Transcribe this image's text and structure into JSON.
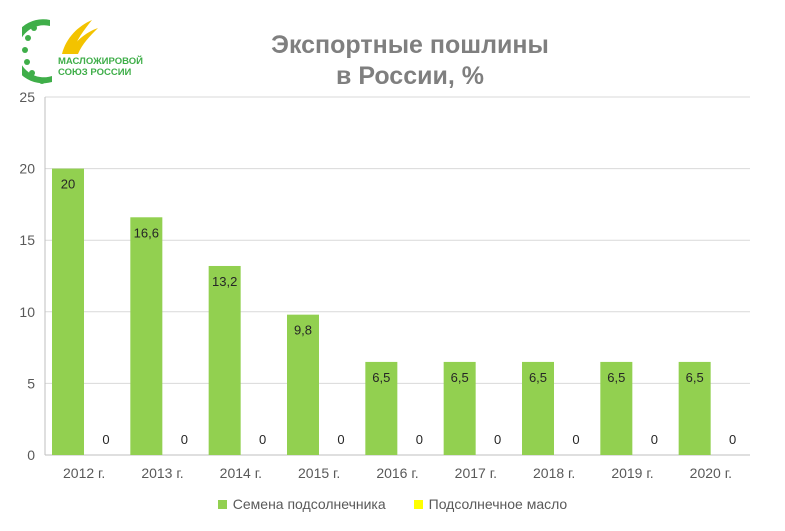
{
  "logo": {
    "line1": "МАСЛОЖИРОВОЙ",
    "line2": "СОЮЗ РОССИИ",
    "colors": {
      "green": "#3fae49",
      "yellow": "#f3c300"
    }
  },
  "chart_data": {
    "type": "bar",
    "title_lines": [
      "Экспортные пошлины",
      "в России, %"
    ],
    "categories": [
      "2012 г.",
      "2013 г.",
      "2014 г.",
      "2015 г.",
      "2016 г.",
      "2017 г.",
      "2018 г.",
      "2019 г.",
      "2020 г."
    ],
    "series": [
      {
        "name": "Семена подсолнечника",
        "color": "#92d050",
        "values": [
          20,
          16.6,
          13.2,
          9.8,
          6.5,
          6.5,
          6.5,
          6.5,
          6.5
        ],
        "labels": [
          "20",
          "16,6",
          "13,2",
          "9,8",
          "6,5",
          "6,5",
          "6,5",
          "6,5",
          "6,5"
        ]
      },
      {
        "name": "Подсолнечное  масло",
        "color": "#ffff00",
        "values": [
          0,
          0,
          0,
          0,
          0,
          0,
          0,
          0,
          0
        ],
        "labels": [
          "0",
          "0",
          "0",
          "0",
          "0",
          "0",
          "0",
          "0",
          "0"
        ]
      }
    ],
    "ylim": [
      0,
      25
    ],
    "yticks": [
      0,
      5,
      10,
      15,
      20,
      25
    ],
    "grid": true,
    "legend": "bottom"
  }
}
